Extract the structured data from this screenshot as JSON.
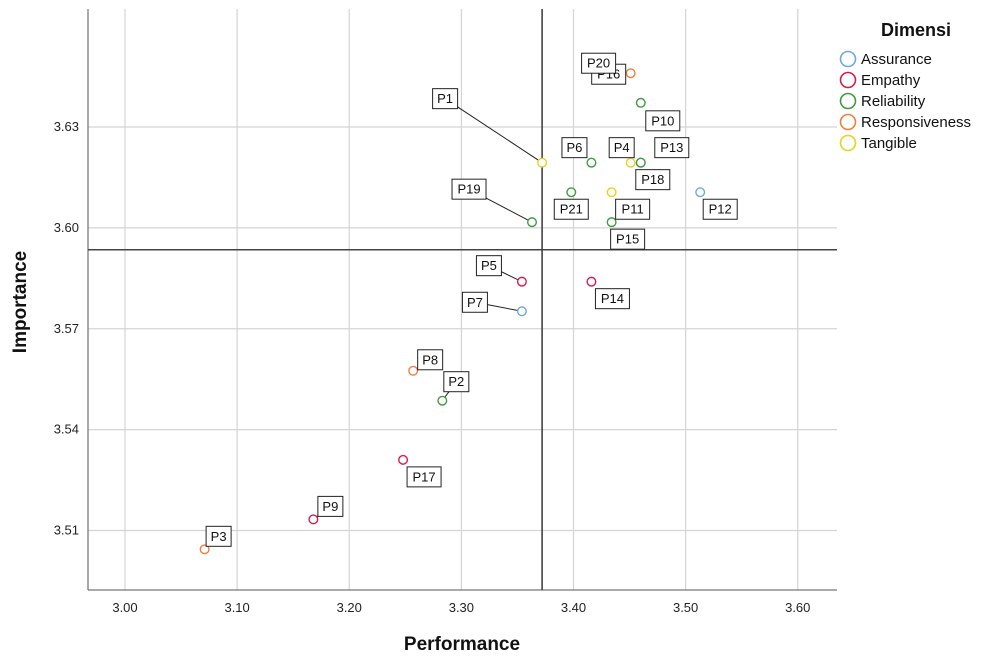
{
  "chart_data": {
    "type": "scatter",
    "xlabel": "Performance",
    "ylabel": "Importance",
    "xlim": [
      2.967,
      3.635
    ],
    "ylim": [
      3.4923,
      3.6651
    ],
    "xticks": [
      "3.00",
      "3.10",
      "3.20",
      "3.30",
      "3.40",
      "3.50",
      "3.60"
    ],
    "yticks": [
      "3.51",
      "3.54",
      "3.57",
      "3.60",
      "3.63"
    ],
    "grid": true,
    "reference_lines": {
      "x": 3.372,
      "y": 3.5935
    },
    "legend": {
      "title": "Dimensi",
      "position": "right",
      "items": [
        {
          "name": "Assurance",
          "color": "#6fa8dc"
        },
        {
          "name": "Empathy",
          "color": "#d81b4a"
        },
        {
          "name": "Reliability",
          "color": "#3e9b3e"
        },
        {
          "name": "Responsiveness",
          "color": "#f08040"
        },
        {
          "name": "Tangible",
          "color": "#e8d21a"
        }
      ]
    },
    "points": [
      {
        "label": "P1",
        "x": 3.372,
        "y": 3.6194,
        "dimensi": "Tangible"
      },
      {
        "label": "P2",
        "x": 3.283,
        "y": 3.5486,
        "dimensi": "Reliability"
      },
      {
        "label": "P3",
        "x": 3.071,
        "y": 3.5044,
        "dimensi": "Responsiveness"
      },
      {
        "label": "P4",
        "x": 3.451,
        "y": 3.6194,
        "dimensi": "Tangible"
      },
      {
        "label": "P5",
        "x": 3.354,
        "y": 3.584,
        "dimensi": "Empathy"
      },
      {
        "label": "P6",
        "x": 3.416,
        "y": 3.6194,
        "dimensi": "Reliability"
      },
      {
        "label": "P7",
        "x": 3.354,
        "y": 3.5752,
        "dimensi": "Assurance"
      },
      {
        "label": "P8",
        "x": 3.257,
        "y": 3.5575,
        "dimensi": "Responsiveness"
      },
      {
        "label": "P9",
        "x": 3.168,
        "y": 3.5133,
        "dimensi": "Empathy"
      },
      {
        "label": "P10",
        "x": 3.46,
        "y": 3.6372,
        "dimensi": "Reliability"
      },
      {
        "label": "P11",
        "x": 3.434,
        "y": 3.6106,
        "dimensi": "Tangible"
      },
      {
        "label": "P12",
        "x": 3.513,
        "y": 3.6106,
        "dimensi": "Assurance"
      },
      {
        "label": "P13",
        "x": 3.46,
        "y": 3.6194,
        "dimensi": "Assurance"
      },
      {
        "label": "P14",
        "x": 3.416,
        "y": 3.584,
        "dimensi": "Empathy"
      },
      {
        "label": "P15",
        "x": 3.434,
        "y": 3.6017,
        "dimensi": "Reliability"
      },
      {
        "label": "P16",
        "x": 3.451,
        "y": 3.646,
        "dimensi": "Responsiveness"
      },
      {
        "label": "P17",
        "x": 3.248,
        "y": 3.531,
        "dimensi": "Empathy"
      },
      {
        "label": "P18",
        "x": 3.46,
        "y": 3.6194,
        "dimensi": "Reliability"
      },
      {
        "label": "P19",
        "x": 3.363,
        "y": 3.6017,
        "dimensi": "Reliability"
      },
      {
        "label": "P20",
        "x": 3.442,
        "y": 3.646,
        "dimensi": "Assurance"
      },
      {
        "label": "P21",
        "x": 3.398,
        "y": 3.6106,
        "dimensi": "Reliability"
      }
    ]
  }
}
